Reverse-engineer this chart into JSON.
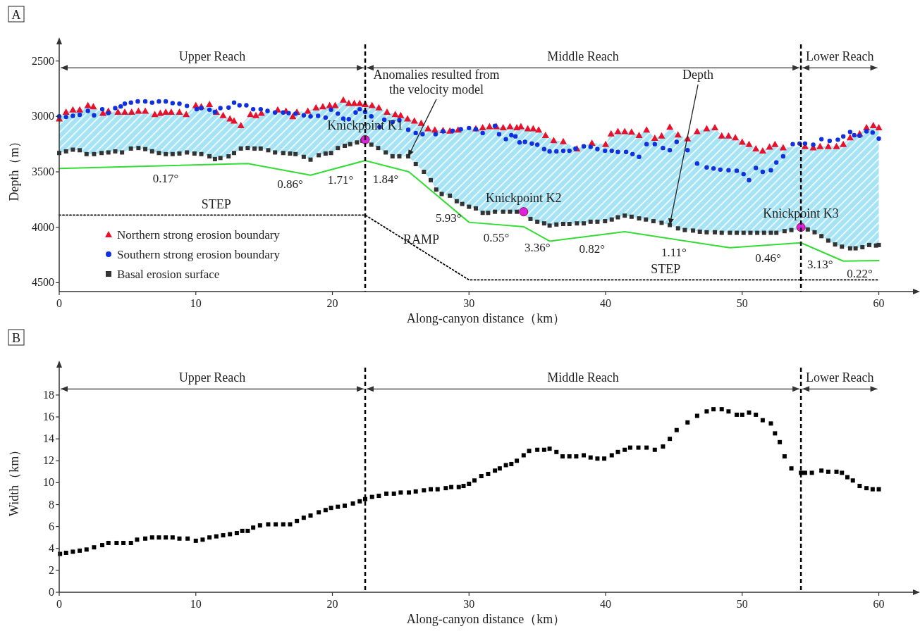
{
  "chart_data": [
    {
      "type": "scatter",
      "title": "A",
      "xlabel": "Along-canyon distance（km）",
      "ylabel": "Depth（m）",
      "xlim": [
        0,
        62.5
      ],
      "ylim": [
        4580,
        2350
      ],
      "xticks": [
        0,
        10,
        20,
        30,
        40,
        50,
        60
      ],
      "yticks": [
        2500,
        3000,
        3500,
        4000,
        4500
      ],
      "grid": false,
      "legend": "bottom left",
      "series": [
        {
          "type": "line",
          "color": "#33dd33",
          "marker": "none",
          "line_style": "solid",
          "x": [
            0,
            13.8,
            18.4,
            22.4,
            25.6,
            30,
            34,
            35.9,
            41.4,
            49.1,
            54.3,
            57.4,
            60
          ],
          "values": [
            3470,
            3425,
            3530,
            3398,
            3500,
            3955,
            3995,
            4125,
            4040,
            4185,
            4140,
            4305,
            4300
          ]
        },
        {
          "type": "line",
          "color": "#000000",
          "marker": "none",
          "line_style": "dotted",
          "x": [
            0,
            22.4,
            30,
            60
          ],
          "values": [
            3890,
            3890,
            4475,
            4475
          ]
        },
        {
          "name": "Northern strong erosion boundary",
          "color": "#e8102a",
          "marker": "triangle",
          "x": [
            0,
            0.5,
            1,
            1.5,
            2.1,
            2.5,
            3.2,
            3.6,
            4.3,
            4.8,
            5.3,
            5.8,
            6.3,
            7,
            7.4,
            7.8,
            8.2,
            8.8,
            9.3,
            10,
            10.4,
            11,
            11.5,
            12,
            12.5,
            12.8,
            13.3,
            14,
            14.4,
            14.8,
            16,
            16.6,
            17.1,
            17.4,
            18.2,
            18.8,
            19.3,
            19.8,
            20.2,
            20.8,
            21.2,
            21.6,
            22,
            22.4,
            22.9,
            23.4,
            24,
            24.6,
            25,
            25.5,
            26,
            26.5,
            27,
            27.5,
            28.1,
            28.6,
            29.2,
            30.5,
            31,
            31.5,
            32,
            32.5,
            33,
            33.5,
            33.8,
            34.3,
            34.7,
            35.1,
            35.6,
            36.2,
            36.9,
            37.9,
            39,
            40,
            40.4,
            40.9,
            41.4,
            41.9,
            42.45,
            43,
            43.6,
            44.1,
            44.7,
            45.3,
            46,
            46.7,
            47.4,
            48,
            48.5,
            49,
            49.5,
            50,
            50.5,
            51,
            51.5,
            52,
            52.4,
            53,
            54.6,
            55.2,
            55.7,
            56.3,
            56.9,
            57.4,
            57.9,
            58.6,
            59.1,
            59.6,
            60
          ],
          "values": [
            3020,
            2960,
            2940,
            2940,
            2900,
            2910,
            2970,
            2950,
            2960,
            2960,
            2960,
            2950,
            2950,
            2980,
            2970,
            2960,
            2960,
            2960,
            2980,
            2900,
            2910,
            2890,
            2960,
            2990,
            3020,
            3040,
            3080,
            2980,
            2990,
            2970,
            2940,
            2950,
            3000,
            2960,
            2950,
            2920,
            2910,
            2900,
            2900,
            2850,
            2880,
            2880,
            2880,
            2890,
            2900,
            2920,
            2960,
            2980,
            2990,
            3020,
            3040,
            3060,
            3110,
            3120,
            3125,
            3130,
            3120,
            3110,
            3100,
            3090,
            3090,
            3100,
            3090,
            3100,
            3090,
            3110,
            3110,
            3120,
            3170,
            3215,
            3225,
            3290,
            3240,
            3250,
            3155,
            3135,
            3135,
            3140,
            3170,
            3120,
            3195,
            3175,
            3095,
            3165,
            3200,
            3135,
            3110,
            3100,
            3175,
            3175,
            3190,
            3230,
            3250,
            3290,
            3310,
            3275,
            3250,
            3280,
            3270,
            3280,
            3270,
            3270,
            3270,
            3250,
            3190,
            3155,
            3100,
            3080,
            3100
          ]
        },
        {
          "name": "Southern strong erosion boundary",
          "color": "#1030e0",
          "marker": "circle",
          "x": [
            0,
            0.5,
            1,
            1.5,
            2.1,
            2.55,
            3.15,
            3.6,
            4.1,
            4.5,
            4.8,
            5.25,
            5.75,
            6.3,
            6.8,
            7.3,
            7.8,
            8.3,
            8.8,
            9.35,
            10.06,
            10.4,
            11,
            11.4,
            11.8,
            12.4,
            12.8,
            13.2,
            13.7,
            14.2,
            14.75,
            15.25,
            15.8,
            16.4,
            16.8,
            17.3,
            17.9,
            18.4,
            18.95,
            19.5,
            19.9,
            20.4,
            20.8,
            21.2,
            21.7,
            22,
            22.4,
            22.85,
            23.45,
            23.8,
            24.4,
            24.9,
            25.55,
            26.1,
            26.6,
            27.55,
            28.1,
            28.8,
            29.4,
            30,
            30.5,
            31,
            31.9,
            32.2,
            32.7,
            33.1,
            33.4,
            33.7,
            34.1,
            34.6,
            35,
            35.5,
            35.9,
            36.4,
            36.9,
            37.35,
            37.8,
            38.4,
            38.9,
            39.4,
            39.96,
            40.45,
            40.9,
            41.5,
            41.97,
            42.45,
            43,
            43.6,
            44.2,
            44.7,
            45.2,
            46,
            46.7,
            47.4,
            47.9,
            48.4,
            49,
            49.6,
            50.1,
            50.5,
            51,
            51.5,
            52.1,
            52.5,
            53,
            53.7,
            54.2,
            54.6,
            55.2,
            55.8,
            56.4,
            57,
            57.4,
            57.9,
            58.2,
            58.6,
            59.1,
            59.55,
            60
          ],
          "values": [
            3000,
            3005,
            2995,
            2985,
            2950,
            2990,
            2935,
            2970,
            2925,
            2910,
            2885,
            2875,
            2865,
            2865,
            2875,
            2865,
            2865,
            2880,
            2885,
            2905,
            2935,
            2925,
            2940,
            2960,
            2925,
            2920,
            2875,
            2900,
            2900,
            2935,
            2935,
            2950,
            2965,
            2965,
            2970,
            2975,
            2990,
            3000,
            2995,
            3010,
            2940,
            2975,
            3020,
            3025,
            2965,
            2935,
            2960,
            3000,
            3095,
            3030,
            3050,
            3035,
            3120,
            3150,
            3160,
            3160,
            3135,
            3130,
            3115,
            3105,
            3115,
            3150,
            3085,
            3160,
            3205,
            3170,
            3180,
            3235,
            3230,
            3245,
            3255,
            3295,
            3315,
            3315,
            3310,
            3310,
            3290,
            3270,
            3275,
            3295,
            3310,
            3310,
            3320,
            3320,
            3340,
            3365,
            3250,
            3250,
            3285,
            3305,
            3230,
            3305,
            3425,
            3460,
            3470,
            3480,
            3485,
            3490,
            3520,
            3575,
            3465,
            3500,
            3485,
            3415,
            3360,
            3250,
            3245,
            3245,
            3255,
            3205,
            3220,
            3210,
            3180,
            3140,
            3170,
            3175,
            3135,
            3145,
            3200
          ]
        },
        {
          "name": "Basal erosion surface",
          "color": "#333333",
          "marker": "square",
          "x": [
            0,
            0.5,
            1,
            1.5,
            2,
            2.55,
            3.1,
            3.6,
            4.1,
            4.6,
            5.25,
            5.8,
            6.3,
            6.8,
            7.3,
            7.8,
            8.3,
            8.8,
            9.35,
            9.9,
            10.4,
            11,
            11.4,
            11.8,
            12.4,
            12.8,
            13.3,
            13.8,
            14.3,
            14.75,
            15.3,
            15.8,
            16.4,
            16.9,
            17.3,
            17.9,
            18.4,
            19,
            19.5,
            19.9,
            20.4,
            20.9,
            21.3,
            21.8,
            22.2,
            22.85,
            23.35,
            23.9,
            24.4,
            24.9,
            25.55,
            26.1,
            26.7,
            27.2,
            27.6,
            28,
            28.6,
            29.1,
            29.5,
            30,
            30.5,
            31,
            31.4,
            31.9,
            32.5,
            33,
            33.5,
            34.5,
            35,
            35.5,
            35.9,
            36.4,
            36.9,
            37.35,
            37.9,
            38.4,
            38.9,
            39.4,
            39.96,
            40.45,
            40.9,
            41.4,
            41.9,
            42.45,
            42.95,
            43.5,
            44.1,
            44.7,
            45.3,
            45.8,
            46.4,
            46.9,
            47.4,
            48,
            48.5,
            49.1,
            49.6,
            50.1,
            50.6,
            51.1,
            51.6,
            52.1,
            52.5,
            53.1,
            53.6,
            54.8,
            55.3,
            55.8,
            56.3,
            56.8,
            57.3,
            57.9,
            58.3,
            58.8,
            59.3,
            59.8,
            60
          ],
          "values": [
            3330,
            3315,
            3300,
            3305,
            3340,
            3340,
            3330,
            3325,
            3315,
            3325,
            3290,
            3285,
            3295,
            3315,
            3330,
            3340,
            3340,
            3335,
            3325,
            3335,
            3340,
            3360,
            3385,
            3375,
            3360,
            3330,
            3290,
            3285,
            3290,
            3290,
            3305,
            3325,
            3330,
            3335,
            3340,
            3365,
            3390,
            3350,
            3335,
            3330,
            3285,
            3265,
            3250,
            3235,
            3220,
            3255,
            3285,
            3325,
            3360,
            3360,
            3360,
            3430,
            3500,
            3575,
            3660,
            3700,
            3715,
            3765,
            3790,
            3815,
            3830,
            3870,
            3870,
            3860,
            3860,
            3860,
            3860,
            3925,
            3950,
            3965,
            3985,
            3975,
            3970,
            3970,
            3965,
            3965,
            3950,
            3950,
            3945,
            3930,
            3910,
            3895,
            3905,
            3920,
            3930,
            3945,
            3960,
            3980,
            4010,
            4025,
            4030,
            4040,
            4045,
            4045,
            4050,
            4050,
            4050,
            4050,
            4050,
            4050,
            4050,
            4050,
            4050,
            4035,
            4025,
            4020,
            4045,
            4080,
            4120,
            4155,
            4175,
            4190,
            4190,
            4180,
            4160,
            4165,
            4160
          ]
        },
        {
          "color": "#e020e0",
          "marker": "circle",
          "x": [
            22.4,
            34,
            54.3
          ],
          "values": [
            3210,
            3860,
            4000
          ]
        }
      ],
      "ref_lines": [
        {
          "axis": "x",
          "value": 22.4,
          "color": "#000000",
          "line_style": "dashed"
        },
        {
          "axis": "x",
          "value": 54.3,
          "color": "#000000",
          "line_style": "dashed"
        }
      ],
      "annotations": [
        "Upper Reach",
        "Middle Reach",
        "Lower Reach",
        {
          "text": "Knickpoint K1",
          "x": 22.4,
          "y": 3210
        },
        {
          "text": "Knickpoint K2",
          "x": 34,
          "y": 3860
        },
        {
          "text": "Knickpoint K3",
          "x": 54.3,
          "y": 4000
        },
        {
          "text": "Anomalies resulted from\nthe velocity model",
          "x": 25.55,
          "y": 3360
        },
        {
          "text": "Depth",
          "x": 44.7,
          "y": 3978
        },
        {
          "text": "0.17°",
          "x": 7.8,
          "y": 3445
        },
        {
          "text": "0.86°",
          "x": 16.9,
          "y": 3496
        },
        {
          "text": "1.71°",
          "x": 20.6,
          "y": 3457
        },
        {
          "text": "1.84°",
          "x": 23.9,
          "y": 3446
        },
        {
          "text": "5.93°",
          "x": 28.5,
          "y": 3800
        },
        {
          "text": "0.55°",
          "x": 32,
          "y": 3975
        },
        {
          "text": "3.36°",
          "x": 35,
          "y": 4063
        },
        {
          "text": "0.82°",
          "x": 39,
          "y": 4077
        },
        {
          "text": "1.11°",
          "x": 45,
          "y": 4108
        },
        {
          "text": "0.46°",
          "x": 51.9,
          "y": 4161
        },
        {
          "text": "3.13°",
          "x": 55.7,
          "y": 4215
        },
        {
          "text": "0.22°",
          "x": 58.6,
          "y": 4303
        },
        {
          "text": "STEP",
          "x": 11.5,
          "y": 3890
        },
        {
          "text": "RAMP",
          "x": 26.5,
          "y": 4206
        },
        {
          "text": "STEP",
          "x": 44.4,
          "y": 4475
        }
      ]
    },
    {
      "type": "scatter",
      "title": "B",
      "xlabel": "Along-canyon distance（km）",
      "ylabel": "Width（km）",
      "xlim": [
        0,
        62.5
      ],
      "ylim": [
        0,
        20.5
      ],
      "xticks": [
        0,
        10,
        20,
        30,
        40,
        50,
        60
      ],
      "yticks": [
        0,
        2,
        4,
        6,
        8,
        10,
        12,
        14,
        16,
        18
      ],
      "grid": false,
      "series": [
        {
          "color": "#000000",
          "marker": "square",
          "x": [
            0.06,
            0.5,
            1,
            1.5,
            2,
            2.55,
            3.15,
            3.6,
            4.2,
            4.7,
            5.25,
            5.7,
            6.3,
            6.8,
            7.3,
            7.8,
            8.3,
            8.8,
            9.4,
            10,
            10.5,
            11,
            11.5,
            12,
            12.5,
            13,
            13.4,
            13.8,
            14.2,
            14.7,
            15.3,
            15.85,
            16.4,
            16.9,
            17.4,
            17.9,
            18.4,
            19,
            19.5,
            19.9,
            20.4,
            20.9,
            21.5,
            22,
            22.4,
            22.9,
            23.4,
            23.95,
            24.5,
            25,
            25.6,
            26.1,
            26.7,
            27.2,
            27.7,
            28.3,
            28.7,
            29.25,
            29.6,
            30,
            30.4,
            30.9,
            31.4,
            31.9,
            32.25,
            32.7,
            33.1,
            33.5,
            34,
            34.4,
            35,
            35.5,
            35.9,
            36.4,
            36.85,
            37.35,
            37.85,
            38.4,
            38.9,
            39.4,
            39.9,
            40.45,
            40.9,
            41.4,
            41.8,
            42.4,
            43,
            43.6,
            44.2,
            44.7,
            45.2,
            46,
            46.7,
            47.4,
            47.9,
            48.5,
            49,
            49.6,
            50,
            50.5,
            51,
            51.5,
            52.1,
            52.4,
            52.75,
            53.1,
            53.6,
            54.3,
            54.6,
            55.1,
            55.8,
            56.3,
            56.9,
            57.3,
            57.7,
            58.1,
            58.6,
            59.1,
            59.55,
            60
          ],
          "values": [
            3.5,
            3.6,
            3.7,
            3.8,
            3.9,
            4.1,
            4.3,
            4.5,
            4.5,
            4.5,
            4.5,
            4.8,
            4.9,
            5,
            5,
            5,
            5,
            4.9,
            4.9,
            4.7,
            4.8,
            5,
            5.1,
            5.2,
            5.3,
            5.4,
            5.6,
            5.6,
            5.9,
            6.1,
            6.2,
            6.2,
            6.2,
            6.2,
            6.5,
            6.8,
            7,
            7.3,
            7.5,
            7.7,
            7.8,
            7.9,
            8.1,
            8.3,
            8.5,
            8.7,
            8.8,
            9,
            9,
            9.1,
            9.1,
            9.2,
            9.3,
            9.4,
            9.4,
            9.5,
            9.6,
            9.6,
            9.7,
            9.9,
            10.2,
            10.6,
            10.8,
            11.1,
            11.3,
            11.6,
            11.7,
            12,
            12.5,
            12.9,
            13,
            13,
            13.1,
            12.8,
            12.4,
            12.4,
            12.4,
            12.5,
            12.3,
            12.2,
            12.2,
            12.5,
            12.8,
            13,
            13.2,
            13.2,
            13.2,
            13,
            13.3,
            14,
            14.8,
            15.5,
            16.1,
            16.5,
            16.7,
            16.7,
            16.5,
            16.2,
            16.2,
            16.4,
            16.2,
            15.7,
            15.4,
            14.5,
            13.7,
            12.4,
            11.3,
            10.9,
            10.9,
            10.9,
            11.1,
            11,
            11,
            10.9,
            10.5,
            10.2,
            9.7,
            9.5,
            9.4,
            9.4
          ]
        }
      ],
      "ref_lines": [
        {
          "axis": "x",
          "value": 22.4,
          "color": "#000000",
          "line_style": "dashed"
        },
        {
          "axis": "x",
          "value": 54.3,
          "color": "#000000",
          "line_style": "dashed"
        }
      ],
      "annotations": [
        "Upper Reach",
        "Middle Reach",
        "Lower Reach"
      ]
    }
  ]
}
